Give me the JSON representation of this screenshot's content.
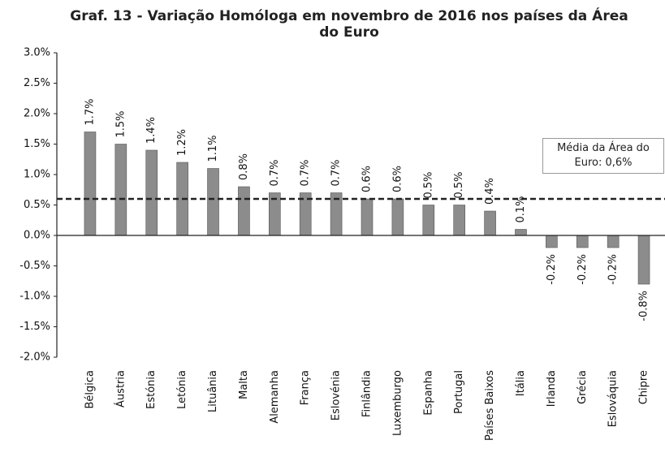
{
  "chart_data": {
    "type": "bar",
    "title": "Graf. 13 - Variação Homóloga em novembro de 2016 nos países da Área do Euro",
    "categories": [
      "Bélgica",
      "Áustria",
      "Estónia",
      "Letónia",
      "Lituânia",
      "Malta",
      "Alemanha",
      "França",
      "Eslovénia",
      "Finlândia",
      "Luxemburgo",
      "Espanha",
      "Portugal",
      "Países Baixos",
      "Itália",
      "Irlanda",
      "Grécia",
      "Eslováquia",
      "Chipre"
    ],
    "values": [
      1.7,
      1.5,
      1.4,
      1.2,
      1.1,
      0.8,
      0.7,
      0.7,
      0.7,
      0.6,
      0.6,
      0.5,
      0.5,
      0.4,
      0.1,
      -0.2,
      -0.2,
      -0.2,
      -0.8
    ],
    "value_labels": [
      "1.7%",
      "1.5%",
      "1.4%",
      "1.2%",
      "1.1%",
      "0.8%",
      "0.7%",
      "0.7%",
      "0.7%",
      "0.6%",
      "0.6%",
      "0.5%",
      "0.5%",
      "0.4%",
      "0.1%",
      "-0.2%",
      "-0.2%",
      "-0.2%",
      "-0.8%"
    ],
    "color": "#8c8c8c",
    "ylim": [
      -2.0,
      3.0
    ],
    "yticks": [
      {
        "value": -2.0,
        "label": "-2.0%"
      },
      {
        "value": -1.5,
        "label": "-1.5%"
      },
      {
        "value": -1.0,
        "label": "-1.0%"
      },
      {
        "value": -0.5,
        "label": "-0.5%"
      },
      {
        "value": 0.0,
        "label": "0.0%"
      },
      {
        "value": 0.5,
        "label": "0.5%"
      },
      {
        "value": 1.0,
        "label": "1.0%"
      },
      {
        "value": 1.5,
        "label": "1.5%"
      },
      {
        "value": 2.0,
        "label": "2.0%"
      },
      {
        "value": 2.5,
        "label": "2.5%"
      },
      {
        "value": 3.0,
        "label": "3.0%"
      }
    ],
    "grid": false,
    "reference_line": {
      "value": 0.6,
      "label": "Média da Área do Euro: 0,6%"
    }
  }
}
